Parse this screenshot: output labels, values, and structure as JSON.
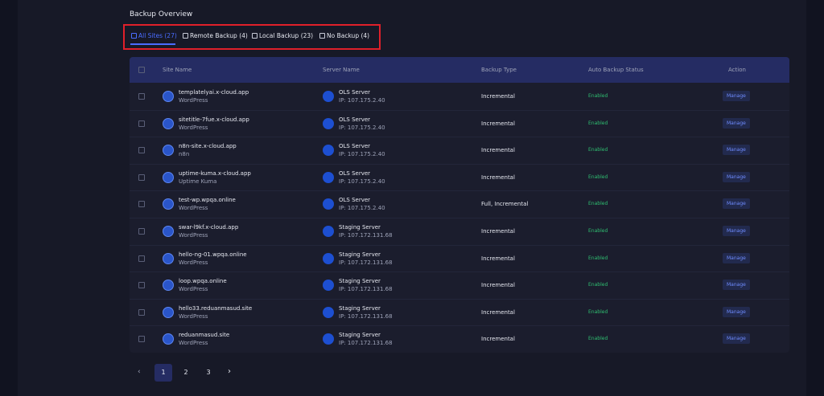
{
  "title": "Backup Overview",
  "tabs": [
    "All Sites (27)",
    "Remote Backup (4)",
    "Local Backup (23)",
    "No Backup (4)"
  ],
  "table": {
    "headers": [
      "Site Name",
      "Server Name",
      "Backup Type",
      "Auto Backup Status",
      "Action"
    ],
    "rows": [
      {
        "site": "templatelyai.x-cloud.app",
        "app": "WordPress",
        "server": "OLS Server",
        "ip": "IP: 107.175.2.40",
        "backup": "Incremental",
        "status": "Enabled",
        "action": "Manage"
      },
      {
        "site": "sitetitle-7fue.x-cloud.app",
        "app": "WordPress",
        "server": "OLS Server",
        "ip": "IP: 107.175.2.40",
        "backup": "Incremental",
        "status": "Enabled",
        "action": "Manage"
      },
      {
        "site": "n8n-site.x-cloud.app",
        "app": "n8n",
        "server": "OLS Server",
        "ip": "IP: 107.175.2.40",
        "backup": "Incremental",
        "status": "Enabled",
        "action": "Manage"
      },
      {
        "site": "uptime-kuma.x-cloud.app",
        "app": "Uptime Kuma",
        "server": "OLS Server",
        "ip": "IP: 107.175.2.40",
        "backup": "Incremental",
        "status": "Enabled",
        "action": "Manage"
      },
      {
        "site": "test-wp.wpqa.online",
        "app": "WordPress",
        "server": "OLS Server",
        "ip": "IP: 107.175.2.40",
        "backup": "Full, Incremental",
        "status": "Enabled",
        "action": "Manage"
      },
      {
        "site": "swar-l9kf.x-cloud.app",
        "app": "WordPress",
        "server": "Staging Server",
        "ip": "IP: 107.172.131.68",
        "backup": "Incremental",
        "status": "Enabled",
        "action": "Manage"
      },
      {
        "site": "hello-ng-01.wpqa.online",
        "app": "WordPress",
        "server": "Staging Server",
        "ip": "IP: 107.172.131.68",
        "backup": "Incremental",
        "status": "Enabled",
        "action": "Manage"
      },
      {
        "site": "loop.wpqa.online",
        "app": "WordPress",
        "server": "Staging Server",
        "ip": "IP: 107.172.131.68",
        "backup": "Incremental",
        "status": "Enabled",
        "action": "Manage"
      },
      {
        "site": "hello33.reduanmasud.site",
        "app": "WordPress",
        "server": "Staging Server",
        "ip": "IP: 107.172.131.68",
        "backup": "Incremental",
        "status": "Enabled",
        "action": "Manage"
      },
      {
        "site": "reduanmasud.site",
        "app": "WordPress",
        "server": "Staging Server",
        "ip": "IP: 107.172.131.68",
        "backup": "Incremental",
        "status": "Enabled",
        "action": "Manage"
      }
    ]
  },
  "pagination": [
    "1",
    "2",
    "3"
  ]
}
